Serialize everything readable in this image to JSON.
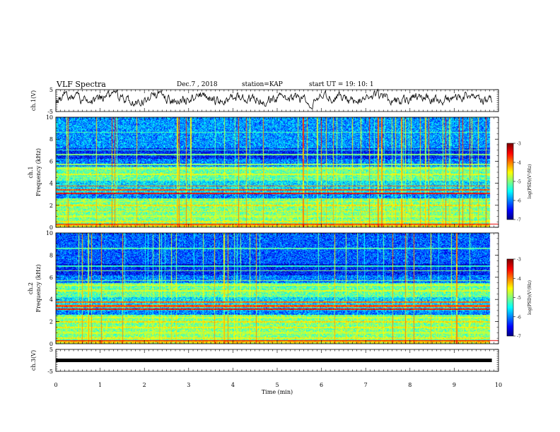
{
  "header": {
    "title": "VLF Spectra",
    "date": "Dec.7 , 2018",
    "station": "station=KAP",
    "start": "start UT = 19: 10: 1"
  },
  "chart_data": [
    {
      "type": "line",
      "name": "ch1-waveform",
      "ylabel": "ch.1(V)",
      "ylim": [
        -5,
        5
      ],
      "yticks": [
        "5",
        "-5"
      ],
      "xlim": [
        0,
        10
      ]
    },
    {
      "type": "heatmap",
      "name": "ch1-spectrogram",
      "ylabel_top": "ch.1",
      "ylabel": "Frequency (kHz)",
      "ylim": [
        0,
        10
      ],
      "yticks": [
        "0",
        "2",
        "4",
        "6",
        "8",
        "10"
      ],
      "xlim": [
        0,
        10
      ],
      "colorbar": {
        "label": "log(PSD)(V²/Hz)",
        "ticks": [
          "-3",
          "-4",
          "-5",
          "-6",
          "-7"
        ],
        "range": [
          -7,
          -3
        ]
      }
    },
    {
      "type": "heatmap",
      "name": "ch2-spectrogram",
      "ylabel_top": "ch.2",
      "ylabel": "Frequency (kHz)",
      "ylim": [
        0,
        10
      ],
      "yticks": [
        "0",
        "2",
        "4",
        "6",
        "8",
        "10"
      ],
      "xlim": [
        0,
        10
      ],
      "colorbar": {
        "label": "log(PSD)(V²/Hz)",
        "ticks": [
          "-3",
          "-4",
          "-5",
          "-6",
          "-7"
        ],
        "range": [
          -7,
          -3
        ]
      }
    },
    {
      "type": "line",
      "name": "ch3-waveform",
      "ylabel": "ch.3(V)",
      "ylim": [
        -5,
        5
      ],
      "yticks": [
        "5",
        "-5"
      ],
      "xlim": [
        0,
        10
      ],
      "xlabel": "Time (min)",
      "xticks": [
        "0",
        "1",
        "2",
        "3",
        "4",
        "5",
        "6",
        "7",
        "8",
        "9",
        "10"
      ]
    }
  ]
}
